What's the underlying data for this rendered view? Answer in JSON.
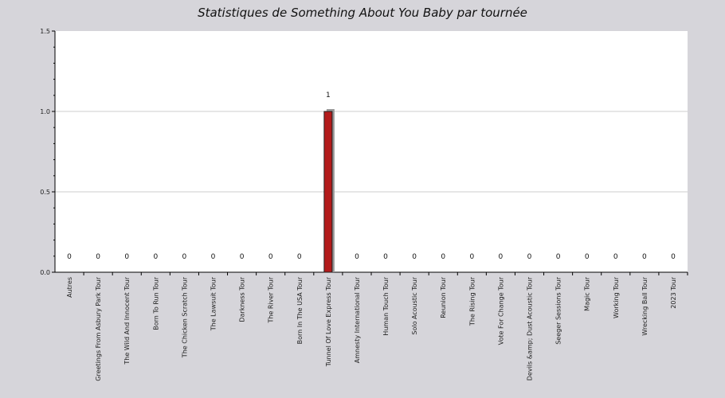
{
  "chart_data": {
    "type": "bar",
    "title": "Statistiques de Something About You Baby par tournée",
    "xlabel": "",
    "ylabel": "",
    "ylim": [
      0,
      1.5
    ],
    "yticks": [
      "0.0",
      "0.5",
      "1.0",
      "1.5"
    ],
    "grid": true,
    "categories": [
      "Autres",
      "Greetings From Asbury Park Tour",
      "The Wild And Innocent Tour",
      "Born To Run Tour",
      "The Chicken Scratch Tour",
      "The Lawsuit Tour",
      "Darkness Tour",
      "The River Tour",
      "Born In The USA Tour",
      "Tunnel Of Love Express Tour",
      "Amnesty International Tour",
      "Human Touch Tour",
      "Solo Acoustic Tour",
      "Reunion Tour",
      "The Rising Tour",
      "Vote For Change Tour",
      "Devils &amp; Dust Acoustic Tour",
      "Seeger Sessions Tour",
      "Magic Tour",
      "Working Tour",
      "Wrecking Ball Tour",
      "2023 Tour"
    ],
    "values": [
      0,
      0,
      0,
      0,
      0,
      0,
      0,
      0,
      0,
      1,
      0,
      0,
      0,
      0,
      0,
      0,
      0,
      0,
      0,
      0,
      0,
      0
    ],
    "data_labels": [
      "0",
      "0",
      "0",
      "0",
      "0",
      "0",
      "0",
      "0",
      "0",
      "1",
      "0",
      "0",
      "0",
      "0",
      "0",
      "0",
      "0",
      "0",
      "0",
      "0",
      "0",
      "0"
    ],
    "colors": {
      "bar": "#b31b1b",
      "bar_shadow": "#9a9a9a",
      "plot_bg": "#ffffff",
      "page_bg": "#d6d5da",
      "grid": "#cccccc"
    }
  }
}
